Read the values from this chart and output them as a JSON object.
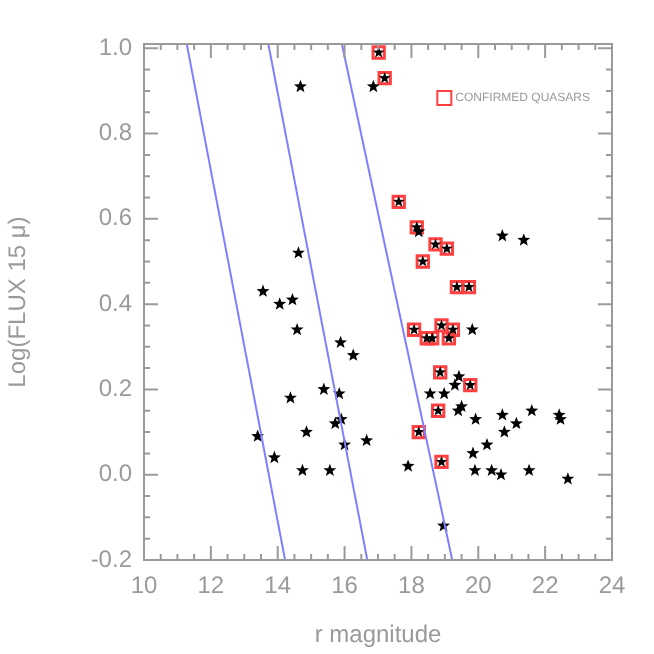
{
  "chart_data": {
    "type": "scatter",
    "xlabel": "r magnitude",
    "ylabel": "Log(FLUX 15 μ)",
    "xlim": [
      10,
      24
    ],
    "ylim": [
      -0.2,
      1.01
    ],
    "xticks": [
      10,
      12,
      14,
      16,
      18,
      20,
      22,
      24
    ],
    "yticks": [
      -0.2,
      {
        "value": 0,
        "label": "0.0"
      },
      0.2,
      0.4,
      0.6,
      0.8,
      {
        "value": 1,
        "label": "1.0"
      }
    ],
    "grid": false,
    "legend": "top right",
    "marker": "star",
    "series": [
      {
        "type": "line",
        "color": "#8080ff",
        "marker": "none",
        "x": [
          11.28,
          14.22
        ],
        "values": [
          1.01,
          -0.2
        ]
      },
      {
        "type": "line",
        "color": "#8080ff",
        "marker": "none",
        "x": [
          13.72,
          16.68
        ],
        "values": [
          1.01,
          -0.2
        ]
      },
      {
        "type": "line",
        "color": "#8080ff",
        "marker": "none",
        "x": [
          15.92,
          19.22
        ],
        "values": [
          1.01,
          -0.2
        ]
      },
      {
        "color": "#000000",
        "x": [
          14.68,
          16.86,
          14.62,
          13.56,
          14.06,
          14.44,
          14.58,
          15.88,
          16.26,
          15.38,
          15.84,
          14.38,
          15.72,
          15.9,
          14.86,
          13.4,
          13.9,
          16.0,
          16.66,
          14.74,
          15.56,
          17.9,
          18.96,
          19.82,
          18.56,
          18.98,
          19.3,
          19.42,
          19.4,
          19.5,
          19.92,
          19.84,
          19.9,
          20.4,
          20.68,
          20.26,
          20.78,
          20.72,
          21.14,
          21.6,
          21.52,
          22.42,
          22.46,
          22.68,
          20.72,
          21.36,
          18.22
        ],
        "values": [
          0.91,
          0.91,
          0.52,
          0.43,
          0.4,
          0.41,
          0.34,
          0.31,
          0.28,
          0.2,
          0.19,
          0.18,
          0.12,
          0.13,
          0.1,
          0.09,
          0.04,
          0.07,
          0.08,
          0.01,
          0.01,
          0.02,
          -0.12,
          0.34,
          0.19,
          0.19,
          0.21,
          0.23,
          0.15,
          0.16,
          0.13,
          0.05,
          0.01,
          0.01,
          0.0,
          0.07,
          0.1,
          0.14,
          0.12,
          0.15,
          0.01,
          0.14,
          0.13,
          -0.01,
          0.56,
          0.55,
          0.57
        ]
      },
      {
        "name": "CONFIRMED QUASARS",
        "color": "#ff4040",
        "marker": "square",
        "x": [
          17.02,
          17.2,
          17.62,
          18.16,
          18.72,
          19.06,
          18.34,
          19.36,
          19.72,
          18.08,
          18.46,
          18.62,
          18.9,
          19.12,
          19.24,
          18.86,
          19.76,
          18.8,
          18.22,
          18.9
        ],
        "values": [
          0.99,
          0.93,
          0.64,
          0.58,
          0.54,
          0.53,
          0.5,
          0.44,
          0.44,
          0.34,
          0.32,
          0.32,
          0.35,
          0.32,
          0.34,
          0.24,
          0.21,
          0.15,
          0.1,
          0.03
        ]
      }
    ]
  }
}
